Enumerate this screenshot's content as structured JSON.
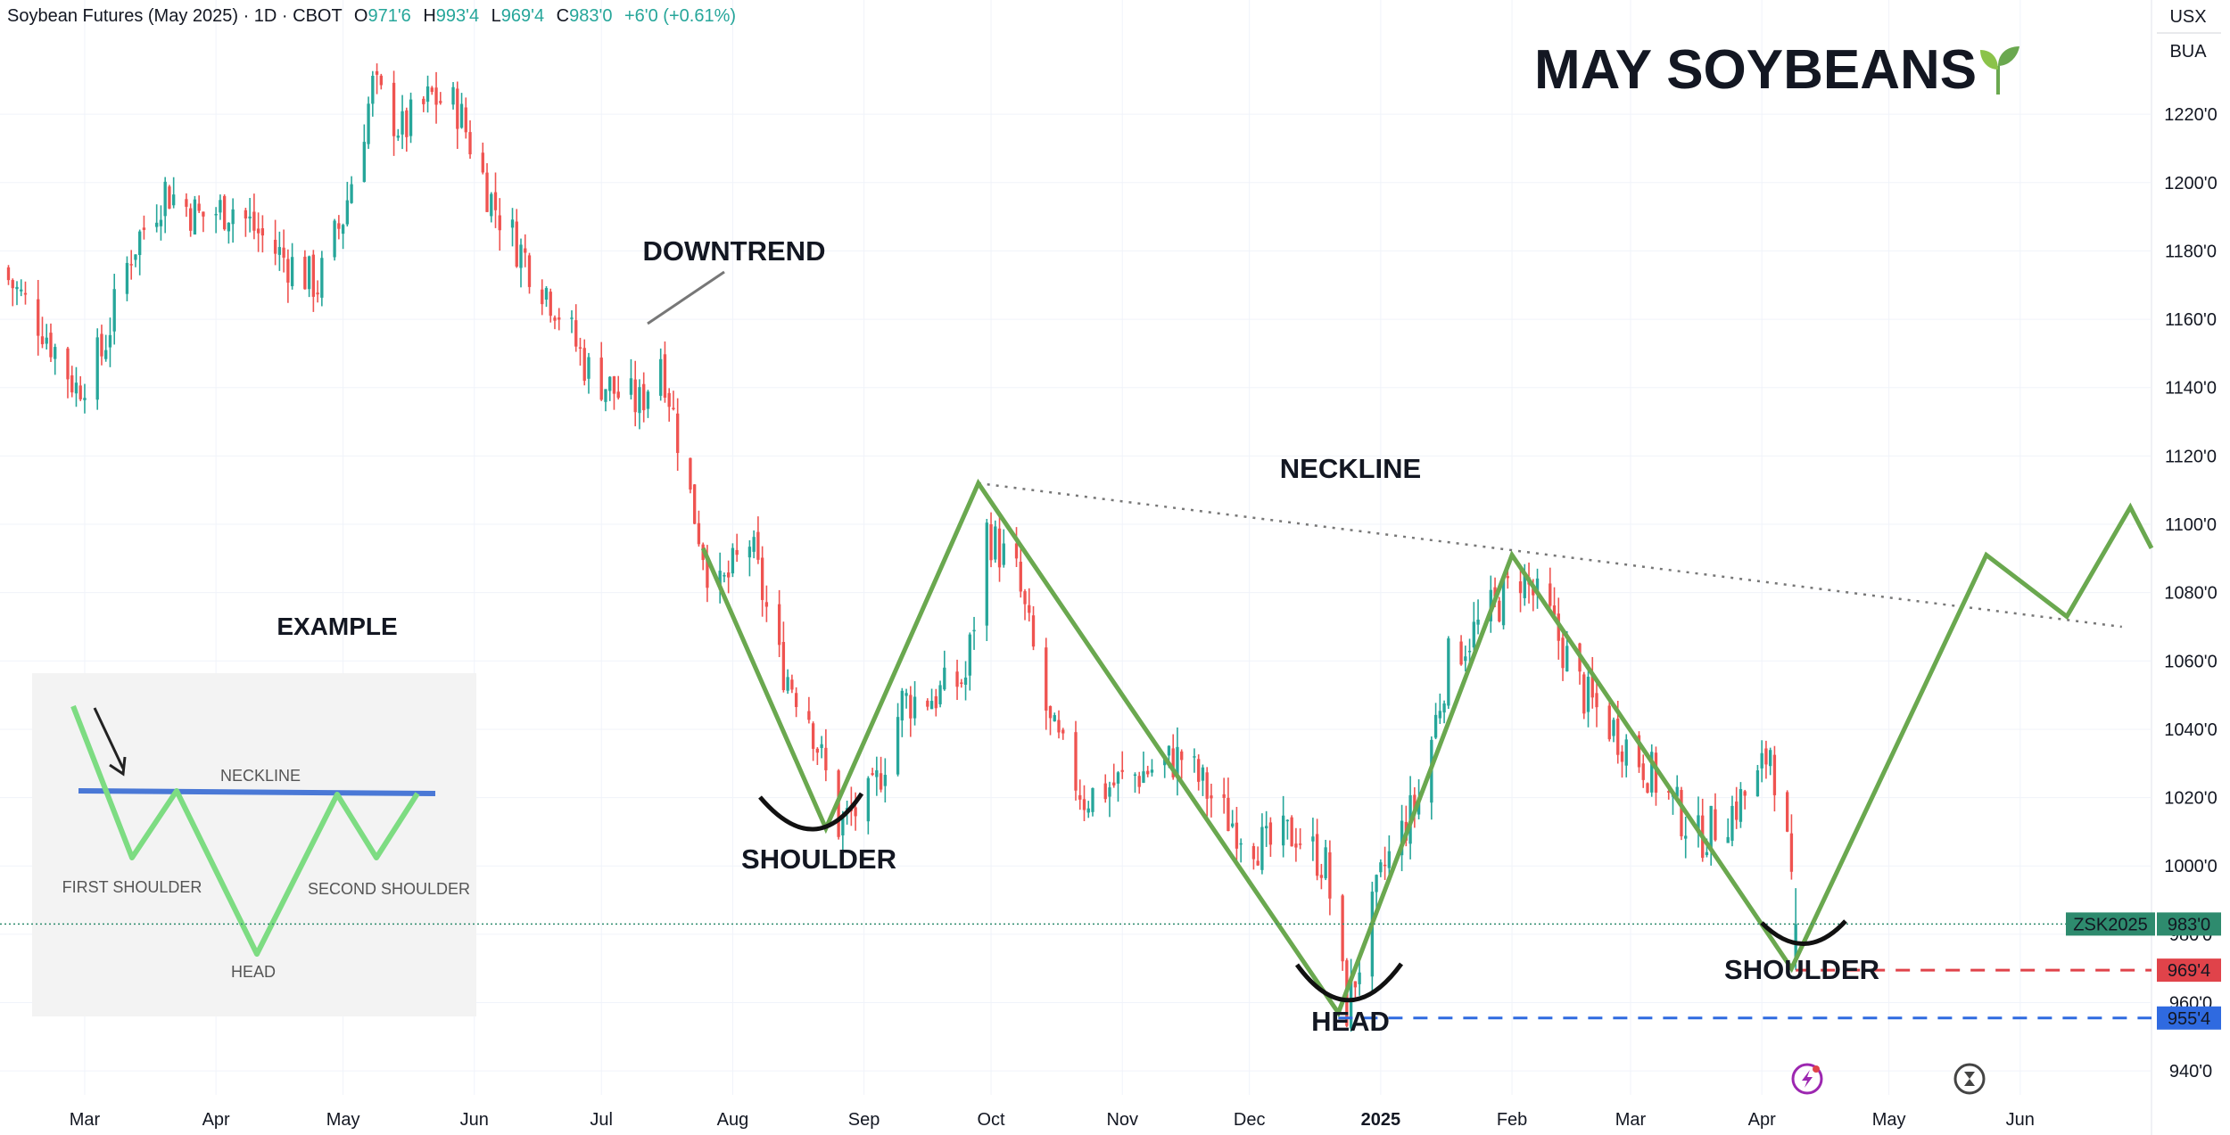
{
  "header": {
    "symbol_title": "Soybean Futures (May 2025) · 1D · CBOT",
    "o_label": "O",
    "o_value": "971'6",
    "h_label": "H",
    "h_value": "993'4",
    "l_label": "L",
    "l_value": "969'4",
    "c_label": "C",
    "c_value": "983'0",
    "change": "+6'0 (+0.61%)"
  },
  "currency": {
    "currency": "USX",
    "unit": "BUA"
  },
  "big_title": "MAY SOYBEANS",
  "annotations": {
    "downtrend": "DOWNTREND",
    "neckline": "NECKLINE",
    "shoulder_left": "SHOULDER",
    "head": "HEAD",
    "shoulder_right": "SHOULDER",
    "example": "EXAMPLE"
  },
  "example_inset": {
    "neckline": "NECKLINE",
    "first_shoulder": "FIRST SHOULDER",
    "second_shoulder": "SECOND SHOULDER",
    "head": "HEAD"
  },
  "price_tags": [
    {
      "name": "ZSK2025",
      "value": "983'0",
      "price": 983,
      "color": "#2e8b6e"
    },
    {
      "name": "",
      "value": "969'4",
      "price": 969.5,
      "color": "#e0434a"
    },
    {
      "name": "",
      "value": "955'4",
      "price": 955.5,
      "color": "#2f6ae0"
    }
  ],
  "colors": {
    "up": "#26a69a",
    "down": "#ef5350",
    "pattern": "#6aa84f",
    "red_line": "#e0434a",
    "blue_line": "#2f6ae0",
    "neckline": "#777777"
  },
  "chart_data": {
    "type": "candlestick",
    "title": "Soybean Futures (May 2025) · 1D · CBOT",
    "y_ticks": [
      940,
      960,
      980,
      1000,
      1020,
      1040,
      1060,
      1080,
      1100,
      1120,
      1140,
      1160,
      1180,
      1200,
      1220
    ],
    "y_tick_labels": [
      "940'0",
      "960'0",
      "980'0",
      "1000'0",
      "1020'0",
      "1040'0",
      "1060'0",
      "1080'0",
      "1100'0",
      "1120'0",
      "1140'0",
      "1160'0",
      "1180'0",
      "1200'0",
      "1220'0"
    ],
    "ylim": [
      933,
      1243
    ],
    "x_labels": [
      "Mar",
      "Apr",
      "May",
      "Jun",
      "Jul",
      "Aug",
      "Sep",
      "Oct",
      "Nov",
      "Dec",
      "2025",
      "Feb",
      "Mar",
      "Apr",
      "May",
      "Jun"
    ],
    "x_label_dates": [
      "2024-03-01",
      "2024-04-01",
      "2024-05-01",
      "2024-06-01",
      "2024-07-01",
      "2024-08-01",
      "2024-09-01",
      "2024-10-01",
      "2024-11-01",
      "2024-12-01",
      "2025-01-01",
      "2025-02-01",
      "2025-03-01",
      "2025-04-01",
      "2025-05-01",
      "2025-06-01"
    ],
    "x_range": [
      "2024-02-10",
      "2025-07-02"
    ],
    "price_path_dates": [
      "2024-02-10",
      "2024-02-20",
      "2024-02-28",
      "2024-03-05",
      "2024-03-12",
      "2024-03-20",
      "2024-03-28",
      "2024-04-05",
      "2024-04-15",
      "2024-04-25",
      "2024-05-01",
      "2024-05-08",
      "2024-05-15",
      "2024-05-22",
      "2024-05-28",
      "2024-06-05",
      "2024-06-12",
      "2024-06-20",
      "2024-06-28",
      "2024-07-05",
      "2024-07-10",
      "2024-07-15",
      "2024-07-22",
      "2024-07-28",
      "2024-08-05",
      "2024-08-12",
      "2024-08-19",
      "2024-08-26",
      "2024-09-03",
      "2024-09-10",
      "2024-09-18",
      "2024-09-25",
      "2024-09-30",
      "2024-10-07",
      "2024-10-15",
      "2024-10-23",
      "2024-11-01",
      "2024-11-07",
      "2024-11-15",
      "2024-11-25",
      "2024-12-05",
      "2024-12-12",
      "2024-12-19",
      "2024-12-24",
      "2025-01-02",
      "2025-01-10",
      "2025-01-17",
      "2025-01-24",
      "2025-02-03",
      "2025-02-10",
      "2025-02-18",
      "2025-02-25",
      "2025-03-04",
      "2025-03-10",
      "2025-03-17",
      "2025-03-24",
      "2025-03-31",
      "2025-04-03",
      "2025-04-07",
      "2025-04-09"
    ],
    "price_path_values": [
      1175,
      1158,
      1140,
      1150,
      1180,
      1198,
      1190,
      1193,
      1180,
      1170,
      1190,
      1228,
      1215,
      1225,
      1222,
      1195,
      1180,
      1165,
      1145,
      1138,
      1135,
      1150,
      1108,
      1078,
      1095,
      1060,
      1045,
      1012,
      1020,
      1048,
      1050,
      1055,
      1098,
      1085,
      1040,
      1020,
      1025,
      1028,
      1032,
      1015,
      1005,
      1010,
      1000,
      958,
      1000,
      1020,
      1060,
      1070,
      1085,
      1072,
      1050,
      1040,
      1030,
      1020,
      1008,
      1015,
      1025,
      1035,
      1005,
      978
    ],
    "y_high": 1235,
    "y_low": 955.5,
    "last": {
      "open": 971.75,
      "high": 993.5,
      "low": 969.5,
      "close": 983.0
    },
    "pattern_path_dates": [
      "2024-07-25",
      "2024-08-23",
      "2024-09-28",
      "2024-12-22",
      "2025-02-01",
      "2025-04-08",
      "2025-05-24",
      "2025-06-12",
      "2025-06-27",
      "2025-07-02"
    ],
    "pattern_path_values": [
      1093,
      1011,
      1112,
      957,
      1091,
      970,
      1091,
      1073,
      1105,
      1093
    ],
    "neckline_dates": [
      "2024-09-28",
      "2025-06-25"
    ],
    "neckline_values": [
      1112,
      1070
    ],
    "support_lines": [
      969.5,
      955.5
    ]
  }
}
